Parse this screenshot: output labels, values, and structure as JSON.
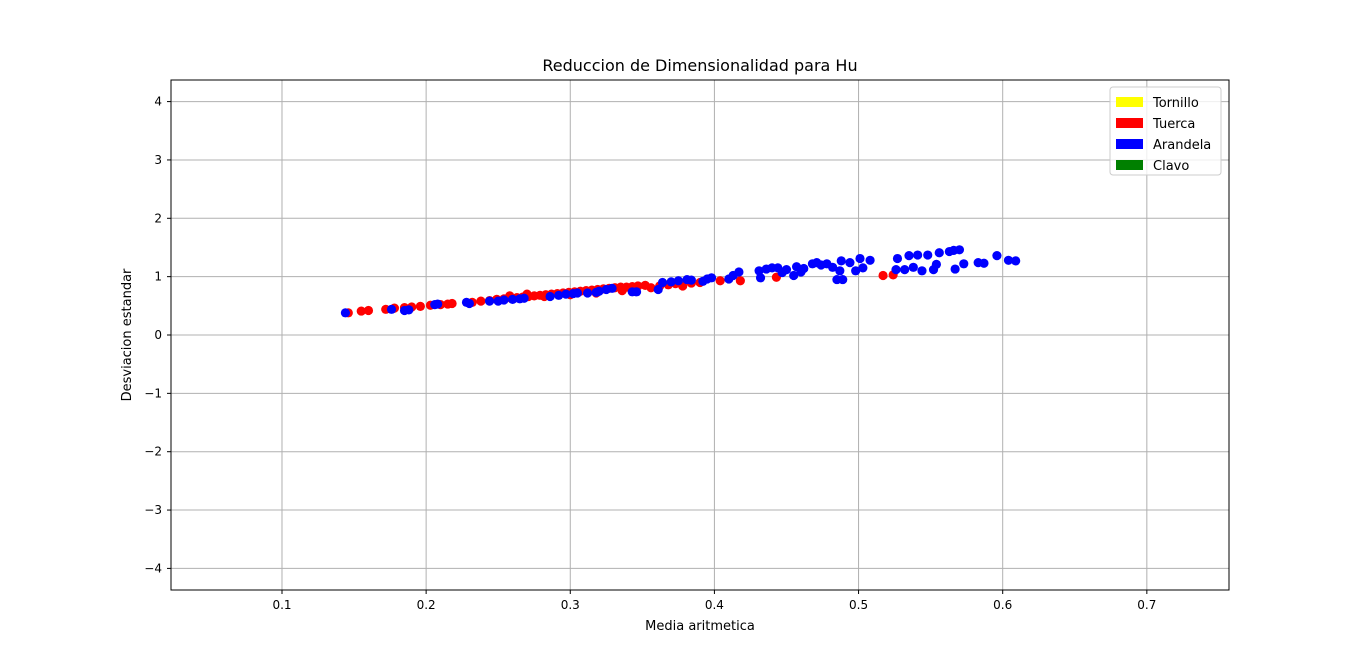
{
  "chart_data": {
    "type": "scatter",
    "title": "Reduccion de Dimensionalidad para Hu",
    "xlabel": "Media aritmetica",
    "ylabel": "Desviacion estandar",
    "xlim": [
      0.023,
      0.757
    ],
    "ylim": [
      -4.37,
      4.37
    ],
    "x_ticks": [
      0.1,
      0.2,
      0.3,
      0.4,
      0.5,
      0.6,
      0.7
    ],
    "y_ticks": [
      4,
      3,
      2,
      1,
      0,
      -1,
      -2,
      -3,
      -4
    ],
    "x_tick_labels": [
      "0.1",
      "0.2",
      "0.3",
      "0.4",
      "0.5",
      "0.6",
      "0.7"
    ],
    "y_tick_labels": [
      "4",
      "3",
      "2",
      "1",
      "0",
      "−1",
      "−2",
      "−3",
      "−4"
    ],
    "grid": true,
    "legend_position": "top-right",
    "legend": [
      {
        "label": "Tornillo",
        "color": "#ffff00"
      },
      {
        "label": "Tuerca",
        "color": "#ff0000"
      },
      {
        "label": "Arandela",
        "color": "#0000ff"
      },
      {
        "label": "Clavo",
        "color": "#008000"
      }
    ],
    "series": [
      {
        "name": "Tuerca",
        "color": "#ff0000",
        "points": [
          [
            0.146,
            0.38
          ],
          [
            0.155,
            0.41
          ],
          [
            0.16,
            0.42
          ],
          [
            0.172,
            0.44
          ],
          [
            0.178,
            0.46
          ],
          [
            0.185,
            0.47
          ],
          [
            0.19,
            0.48
          ],
          [
            0.196,
            0.49
          ],
          [
            0.203,
            0.51
          ],
          [
            0.21,
            0.52
          ],
          [
            0.215,
            0.53
          ],
          [
            0.218,
            0.54
          ],
          [
            0.232,
            0.56
          ],
          [
            0.238,
            0.58
          ],
          [
            0.244,
            0.59
          ],
          [
            0.249,
            0.61
          ],
          [
            0.254,
            0.62
          ],
          [
            0.259,
            0.63
          ],
          [
            0.263,
            0.64
          ],
          [
            0.267,
            0.65
          ],
          [
            0.271,
            0.66
          ],
          [
            0.275,
            0.67
          ],
          [
            0.279,
            0.68
          ],
          [
            0.283,
            0.69
          ],
          [
            0.287,
            0.7
          ],
          [
            0.291,
            0.71
          ],
          [
            0.295,
            0.72
          ],
          [
            0.299,
            0.73
          ],
          [
            0.303,
            0.74
          ],
          [
            0.307,
            0.75
          ],
          [
            0.311,
            0.76
          ],
          [
            0.315,
            0.77
          ],
          [
            0.319,
            0.78
          ],
          [
            0.323,
            0.79
          ],
          [
            0.327,
            0.8
          ],
          [
            0.331,
            0.81
          ],
          [
            0.335,
            0.82
          ],
          [
            0.339,
            0.82
          ],
          [
            0.343,
            0.83
          ],
          [
            0.347,
            0.84
          ],
          [
            0.352,
            0.85
          ],
          [
            0.356,
            0.81
          ],
          [
            0.362,
            0.84
          ],
          [
            0.368,
            0.86
          ],
          [
            0.373,
            0.88
          ],
          [
            0.378,
            0.84
          ],
          [
            0.384,
            0.89
          ],
          [
            0.39,
            0.9
          ],
          [
            0.404,
            0.93
          ],
          [
            0.418,
            0.93
          ],
          [
            0.443,
            0.99
          ],
          [
            0.517,
            1.02
          ],
          [
            0.524,
            1.03
          ],
          [
            0.27,
            0.7
          ],
          [
            0.282,
            0.66
          ],
          [
            0.3,
            0.69
          ],
          [
            0.318,
            0.72
          ],
          [
            0.336,
            0.76
          ],
          [
            0.344,
            0.79
          ],
          [
            0.258,
            0.67
          ]
        ]
      },
      {
        "name": "Arandela",
        "color": "#0000ff",
        "points": [
          [
            0.144,
            0.38
          ],
          [
            0.176,
            0.44
          ],
          [
            0.185,
            0.42
          ],
          [
            0.188,
            0.43
          ],
          [
            0.206,
            0.52
          ],
          [
            0.208,
            0.53
          ],
          [
            0.228,
            0.56
          ],
          [
            0.23,
            0.54
          ],
          [
            0.244,
            0.58
          ],
          [
            0.25,
            0.58
          ],
          [
            0.254,
            0.6
          ],
          [
            0.26,
            0.61
          ],
          [
            0.265,
            0.62
          ],
          [
            0.268,
            0.63
          ],
          [
            0.286,
            0.66
          ],
          [
            0.292,
            0.68
          ],
          [
            0.297,
            0.7
          ],
          [
            0.302,
            0.71
          ],
          [
            0.305,
            0.72
          ],
          [
            0.312,
            0.72
          ],
          [
            0.318,
            0.73
          ],
          [
            0.32,
            0.75
          ],
          [
            0.325,
            0.78
          ],
          [
            0.329,
            0.8
          ],
          [
            0.343,
            0.74
          ],
          [
            0.346,
            0.74
          ],
          [
            0.361,
            0.78
          ],
          [
            0.364,
            0.9
          ],
          [
            0.37,
            0.91
          ],
          [
            0.375,
            0.93
          ],
          [
            0.381,
            0.95
          ],
          [
            0.384,
            0.94
          ],
          [
            0.392,
            0.92
          ],
          [
            0.395,
            0.96
          ],
          [
            0.398,
            0.98
          ],
          [
            0.41,
            0.96
          ],
          [
            0.413,
            1.02
          ],
          [
            0.417,
            1.08
          ],
          [
            0.431,
            1.1
          ],
          [
            0.432,
            0.98
          ],
          [
            0.436,
            1.13
          ],
          [
            0.44,
            1.15
          ],
          [
            0.444,
            1.15
          ],
          [
            0.447,
            1.07
          ],
          [
            0.45,
            1.12
          ],
          [
            0.455,
            1.02
          ],
          [
            0.457,
            1.17
          ],
          [
            0.46,
            1.08
          ],
          [
            0.462,
            1.14
          ],
          [
            0.468,
            1.22
          ],
          [
            0.471,
            1.24
          ],
          [
            0.474,
            1.2
          ],
          [
            0.478,
            1.22
          ],
          [
            0.482,
            1.16
          ],
          [
            0.485,
            0.95
          ],
          [
            0.487,
            1.1
          ],
          [
            0.488,
            1.27
          ],
          [
            0.489,
            0.95
          ],
          [
            0.494,
            1.24
          ],
          [
            0.498,
            1.1
          ],
          [
            0.501,
            1.31
          ],
          [
            0.503,
            1.15
          ],
          [
            0.508,
            1.28
          ],
          [
            0.526,
            1.12
          ],
          [
            0.527,
            1.31
          ],
          [
            0.532,
            1.12
          ],
          [
            0.535,
            1.36
          ],
          [
            0.538,
            1.16
          ],
          [
            0.541,
            1.37
          ],
          [
            0.544,
            1.1
          ],
          [
            0.548,
            1.37
          ],
          [
            0.552,
            1.12
          ],
          [
            0.554,
            1.21
          ],
          [
            0.556,
            1.41
          ],
          [
            0.563,
            1.43
          ],
          [
            0.566,
            1.45
          ],
          [
            0.57,
            1.46
          ],
          [
            0.573,
            1.22
          ],
          [
            0.583,
            1.24
          ],
          [
            0.587,
            1.23
          ],
          [
            0.596,
            1.36
          ],
          [
            0.604,
            1.28
          ],
          [
            0.609,
            1.27
          ],
          [
            0.567,
            1.13
          ]
        ]
      }
    ]
  }
}
